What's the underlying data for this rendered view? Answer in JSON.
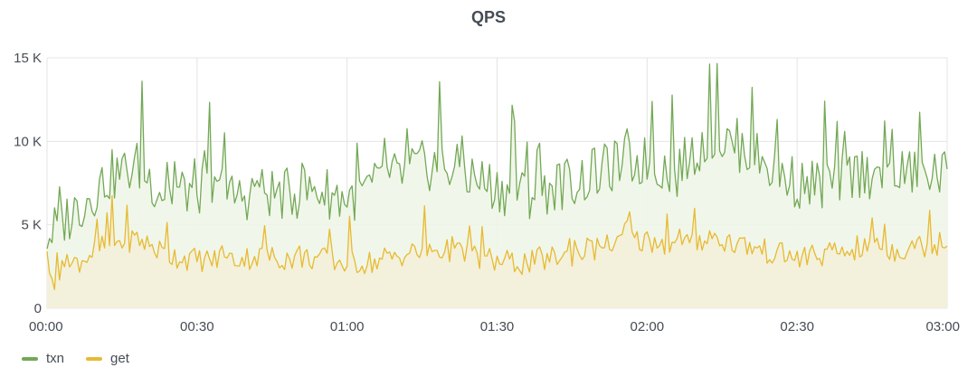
{
  "chart_data": {
    "type": "area",
    "title": "QPS",
    "xlabel": "",
    "ylabel": "",
    "ylim": [
      0,
      15000
    ],
    "yticks": [
      0,
      5000,
      10000,
      15000
    ],
    "ytick_labels": [
      "0",
      "5 K",
      "10 K",
      "15 K"
    ],
    "xlim_minutes": [
      0,
      180
    ],
    "xticks_minutes": [
      0,
      30,
      60,
      90,
      120,
      150,
      180
    ],
    "xtick_labels": [
      "00:00",
      "00:30",
      "01:00",
      "01:30",
      "02:00",
      "02:30",
      "03:00"
    ],
    "grid": true,
    "legend_position": "bottom-left",
    "x_minutes": [
      0,
      6,
      12,
      18,
      24,
      30,
      36,
      42,
      48,
      54,
      60,
      66,
      72,
      78,
      84,
      90,
      96,
      102,
      108,
      114,
      120,
      126,
      132,
      138,
      144,
      150,
      156,
      162,
      168,
      174,
      180
    ],
    "series": [
      {
        "name": "txn",
        "color": "#73a856",
        "fill": "#eef6e8",
        "values": [
          4300,
          6000,
          7800,
          8500,
          6800,
          7200,
          6500,
          7000,
          6800,
          7100,
          6600,
          7300,
          8200,
          8700,
          8000,
          7200,
          6800,
          7400,
          7800,
          8600,
          8800,
          8200,
          10200,
          9800,
          8600,
          7500,
          7300,
          8200,
          7900,
          8200,
          8000
        ]
      },
      {
        "name": "get",
        "color": "#e8b932",
        "fill": "#f3efd9",
        "values": [
          1500,
          2800,
          3800,
          4200,
          3200,
          2900,
          2900,
          3100,
          3000,
          3000,
          2700,
          2800,
          3300,
          3500,
          3200,
          2800,
          2700,
          3100,
          3400,
          3900,
          4100,
          3700,
          4200,
          3900,
          3400,
          3000,
          3200,
          3600,
          3400,
          3700,
          4000
        ]
      }
    ]
  }
}
